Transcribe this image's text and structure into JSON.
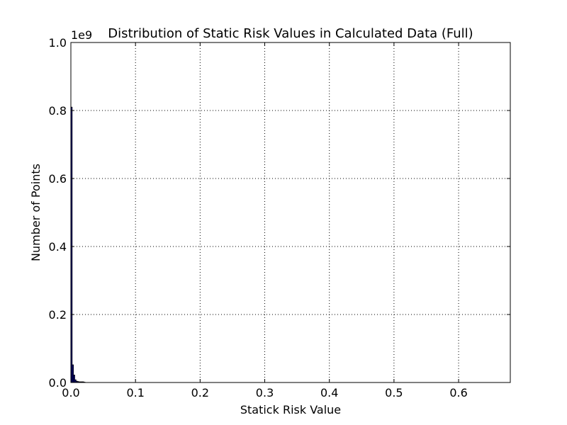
{
  "chart_data": {
    "type": "bar",
    "title": "Distribution of Static Risk Values in Calculated Data (Full)",
    "xlabel": "Statick Risk Value",
    "ylabel": "Number of Points",
    "y_offset_label": "1e9",
    "xlim": [
      0,
      0.68
    ],
    "ylim": [
      0,
      1.0
    ],
    "x_ticks": [
      0.0,
      0.1,
      0.2,
      0.3,
      0.4,
      0.5,
      0.6
    ],
    "x_tick_labels": [
      "0.0",
      "0.1",
      "0.2",
      "0.3",
      "0.4",
      "0.5",
      "0.6"
    ],
    "y_ticks": [
      0.0,
      0.2,
      0.4,
      0.6,
      0.8,
      1.0
    ],
    "y_tick_labels": [
      "0.0",
      "0.2",
      "0.4",
      "0.6",
      "0.8",
      "1.0"
    ],
    "grid": true,
    "bar_color": "#00008b",
    "bin_width": 0.002,
    "bins": [
      {
        "x": 0.0,
        "value": 0.81
      },
      {
        "x": 0.002,
        "value": 0.052
      },
      {
        "x": 0.004,
        "value": 0.022
      },
      {
        "x": 0.006,
        "value": 0.008
      },
      {
        "x": 0.008,
        "value": 0.004
      },
      {
        "x": 0.01,
        "value": 0.003
      },
      {
        "x": 0.012,
        "value": 0.002
      },
      {
        "x": 0.014,
        "value": 0.002
      },
      {
        "x": 0.016,
        "value": 0.002
      },
      {
        "x": 0.018,
        "value": 0.002
      },
      {
        "x": 0.02,
        "value": 0.001
      }
    ]
  }
}
